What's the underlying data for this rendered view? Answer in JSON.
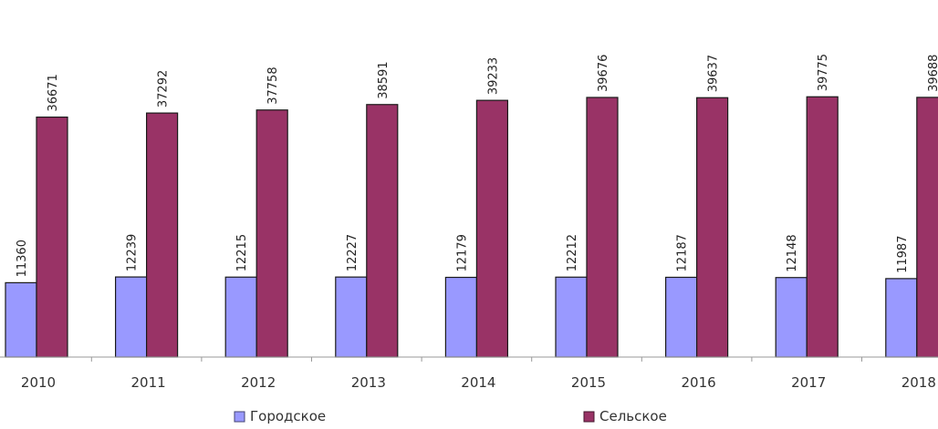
{
  "chart_data": {
    "type": "bar",
    "categories": [
      "2010",
      "2011",
      "2012",
      "2013",
      "2014",
      "2015",
      "2016",
      "2017",
      "2018"
    ],
    "series": [
      {
        "name": "Городское",
        "color": "#9999FF",
        "values": [
          11360,
          12239,
          12215,
          12227,
          12179,
          12212,
          12187,
          12148,
          11987
        ]
      },
      {
        "name": "Сельское",
        "color": "#993366",
        "values": [
          36671,
          37292,
          37758,
          38591,
          39233,
          39676,
          39637,
          39775,
          39688
        ]
      }
    ],
    "ylim": [
      0,
      49000
    ],
    "grid": false,
    "legend_position": "bottom",
    "data_labels": true,
    "data_label_orientation": "vertical"
  }
}
